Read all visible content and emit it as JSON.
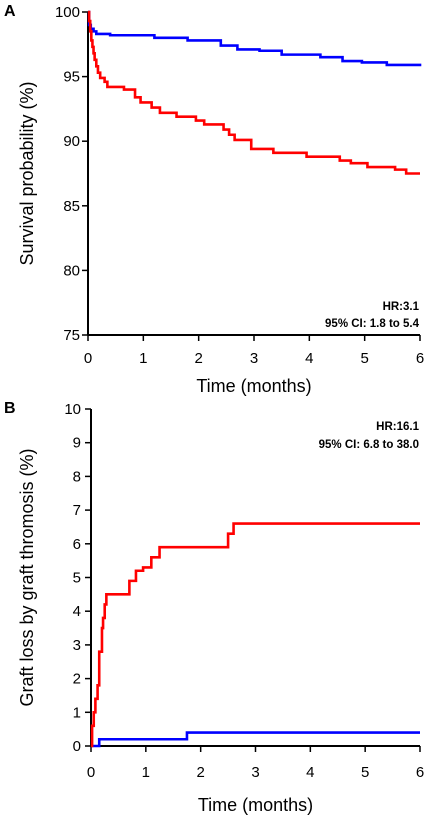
{
  "chart_data": [
    {
      "panel": "A",
      "type": "line",
      "step": true,
      "xlabel": "Time (months)",
      "ylabel": "Survival probability (%)",
      "xlim": [
        0,
        6
      ],
      "ylim": [
        75,
        100
      ],
      "xticks": [
        0,
        1,
        2,
        3,
        4,
        5,
        6
      ],
      "yticks": [
        75,
        80,
        85,
        90,
        95,
        100
      ],
      "grid": false,
      "annotations": [
        "HR:3.1",
        "95% CI: 1.8 to 5.4"
      ],
      "series": [
        {
          "color": "#0000ff",
          "x": [
            0,
            0.02,
            0.05,
            0.1,
            0.15,
            0.4,
            1.2,
            1.8,
            2.4,
            2.7,
            3.1,
            3.5,
            4.2,
            4.6,
            4.95,
            5.4,
            6.0
          ],
          "y": [
            100,
            99.0,
            98.7,
            98.5,
            98.3,
            98.2,
            98.0,
            97.8,
            97.4,
            97.1,
            97.0,
            96.7,
            96.5,
            96.2,
            96.1,
            95.9,
            95.8
          ]
        },
        {
          "color": "#ff0000",
          "x": [
            0,
            0.02,
            0.04,
            0.06,
            0.08,
            0.1,
            0.12,
            0.15,
            0.18,
            0.22,
            0.3,
            0.35,
            0.65,
            0.85,
            0.95,
            1.15,
            1.3,
            1.6,
            1.95,
            2.1,
            2.45,
            2.55,
            2.65,
            2.95,
            3.35,
            3.95,
            4.55,
            4.75,
            5.05,
            5.55,
            5.75,
            6.0
          ],
          "y": [
            100,
            99.3,
            98.5,
            97.8,
            97.3,
            96.8,
            96.3,
            95.8,
            95.3,
            94.9,
            94.6,
            94.2,
            94.0,
            93.4,
            93.0,
            92.6,
            92.2,
            91.9,
            91.6,
            91.3,
            90.9,
            90.5,
            90.1,
            89.4,
            89.1,
            88.8,
            88.5,
            88.3,
            88.0,
            87.8,
            87.5,
            87.5
          ]
        }
      ]
    },
    {
      "panel": "B",
      "type": "line",
      "step": true,
      "xlabel": "Time (months)",
      "ylabel": "Graft loss by graft thromosis (%)",
      "xlim": [
        0,
        6
      ],
      "ylim": [
        0,
        10
      ],
      "xticks": [
        0,
        1,
        2,
        3,
        4,
        5,
        6
      ],
      "yticks": [
        0,
        1,
        2,
        3,
        4,
        5,
        6,
        7,
        8,
        9,
        10
      ],
      "grid": false,
      "annotations": [
        "HR:16.1",
        "95% CI: 6.8 to 38.0"
      ],
      "series": [
        {
          "color": "#0000ff",
          "x": [
            0,
            0.15,
            1.75,
            6.0
          ],
          "y": [
            0,
            0.2,
            0.4,
            0.4
          ]
        },
        {
          "color": "#ff0000",
          "x": [
            0,
            0.02,
            0.05,
            0.08,
            0.12,
            0.15,
            0.2,
            0.22,
            0.25,
            0.28,
            0.3,
            0.7,
            0.82,
            0.95,
            1.1,
            1.25,
            2.25,
            2.5,
            2.6,
            6.0
          ],
          "y": [
            0,
            0.6,
            1.0,
            1.4,
            1.8,
            2.8,
            3.5,
            3.8,
            4.2,
            4.5,
            4.5,
            4.9,
            5.2,
            5.3,
            5.6,
            5.9,
            5.9,
            6.3,
            6.6,
            6.6
          ]
        }
      ]
    }
  ]
}
